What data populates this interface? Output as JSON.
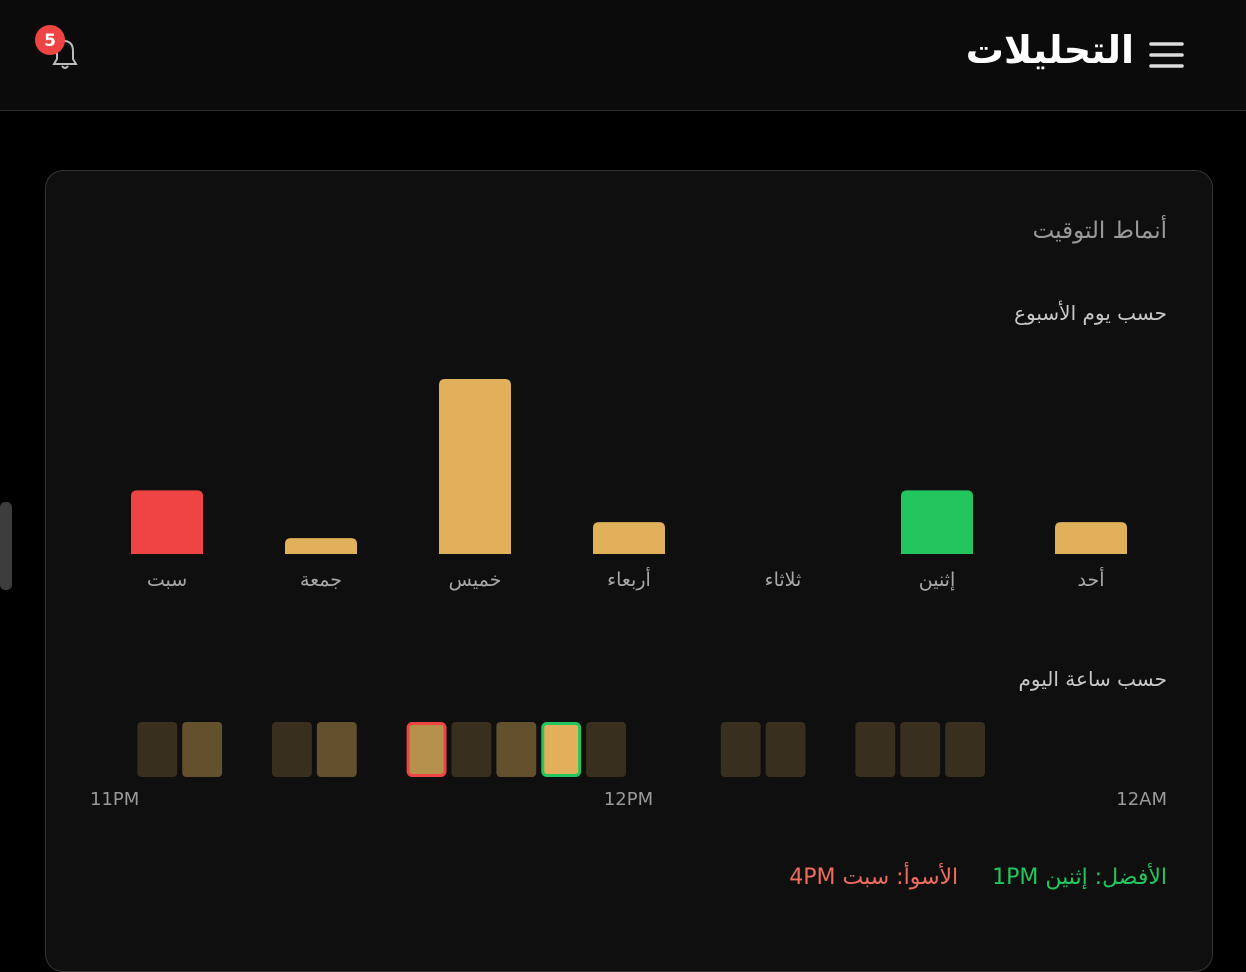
{
  "header": {
    "title": "التحليلات",
    "notification_count": 5
  },
  "card": {
    "title": "أنماط التوقيت"
  },
  "chart_data": [
    {
      "type": "bar",
      "title": "حسب يوم الأسبوع",
      "categories": [
        "أحد",
        "إثنين",
        "ثلاثاء",
        "أربعاء",
        "خميس",
        "جمعة",
        "سبت"
      ],
      "values": [
        2,
        4,
        0,
        2,
        11,
        1,
        4
      ],
      "colors": [
        "#e0b15a",
        "#22c55e",
        "#e0b15a",
        "#e0b15a",
        "#e0b15a",
        "#e0b15a",
        "#ef4444"
      ]
    },
    {
      "type": "heatmap",
      "title": "حسب ساعة اليوم",
      "x": [
        0,
        1,
        2,
        3,
        4,
        5,
        6,
        7,
        8,
        9,
        10,
        11,
        12,
        13,
        14,
        15,
        16,
        17,
        18,
        19,
        20,
        21,
        22,
        23
      ],
      "values": [
        0,
        0,
        0,
        0,
        1,
        1,
        1,
        0,
        1,
        1,
        0,
        0,
        1,
        5,
        2,
        1,
        4,
        0,
        2,
        1,
        0,
        2,
        1,
        0
      ],
      "color": "#e0b15a",
      "outline_colors": [
        null,
        null,
        null,
        null,
        null,
        null,
        null,
        null,
        null,
        null,
        null,
        null,
        null,
        "#22c55e",
        null,
        null,
        "#ef4444",
        null,
        null,
        null,
        null,
        null,
        null,
        null
      ],
      "xlim": [
        0,
        24
      ],
      "xticks": [
        {
          "value": 0,
          "label": "12AM"
        },
        {
          "value": 12,
          "label": "12PM"
        },
        {
          "value": 23,
          "label": "11PM"
        }
      ]
    }
  ],
  "summary": {
    "best": "الأفضل: إثنين 1PM",
    "worst": "الأسوأ: سبت 4PM"
  }
}
